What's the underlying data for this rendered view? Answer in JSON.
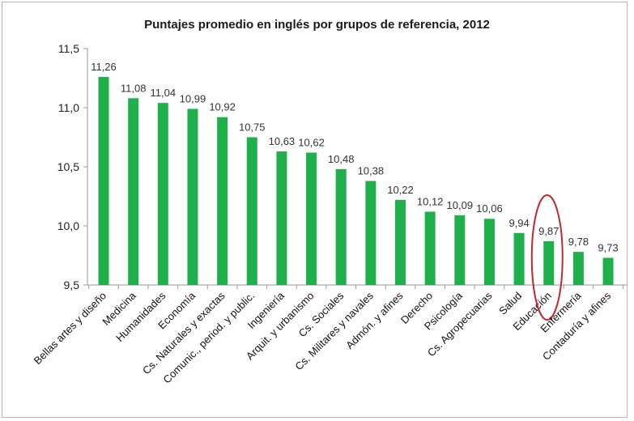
{
  "chart_data": {
    "type": "bar",
    "title": "Puntajes promedio en inglés por grupos de referencia, 2012",
    "xlabel": "",
    "ylabel": "",
    "ylim": [
      9.5,
      11.5
    ],
    "yticks": [
      "9,5",
      "10,0",
      "10,5",
      "11,0",
      "11,5"
    ],
    "ytick_values": [
      9.5,
      10.0,
      10.5,
      11.0,
      11.5
    ],
    "categories": [
      "Bellas artes y diseño",
      "Medicina",
      "Humanidades",
      "Economía",
      "Cs. Naturales y exactas",
      "Comunic., period. y public.",
      "Ingeniería",
      "Arquit. y urbanismo",
      "Cs. Sociales",
      "Cs. Militares y navales",
      "Admón. y afines",
      "Derecho",
      "Psicología",
      "Cs. Agropecuarias",
      "Salud",
      "Educación",
      "Enfermería",
      "Contaduría y afines"
    ],
    "values": [
      11.26,
      11.08,
      11.04,
      10.99,
      10.92,
      10.75,
      10.63,
      10.62,
      10.48,
      10.38,
      10.22,
      10.12,
      10.09,
      10.06,
      9.94,
      9.87,
      9.78,
      9.73
    ],
    "value_labels": [
      "11,26",
      "11,08",
      "11,04",
      "10,99",
      "10,92",
      "10,75",
      "10,63",
      "10,62",
      "10,48",
      "10,38",
      "10,22",
      "10,12",
      "10,09",
      "10,06",
      "9,94",
      "9,87",
      "9,78",
      "9,73"
    ],
    "highlighted_category": "Educación",
    "bar_color": "#1fb04b",
    "highlight_color": "#c0282d",
    "grid": false,
    "legend": "none"
  }
}
